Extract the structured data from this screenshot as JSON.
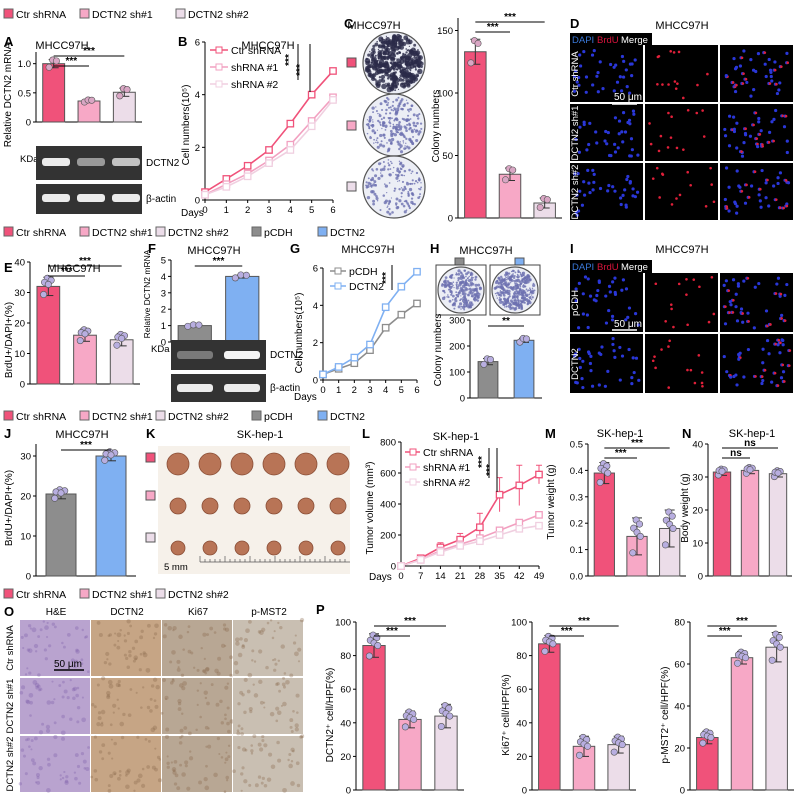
{
  "colors": {
    "ctr": "#f0527a",
    "sh1": "#f7a8c6",
    "sh2": "#ecdde9",
    "pcdh": "#8d8d8d",
    "dctn2": "#7fb0f2",
    "red": "#d8143c",
    "blue": "#3a78d8"
  },
  "legend1": [
    "Ctr shRNA",
    "DCTN2 sh#1",
    "DCTN2 sh#2"
  ],
  "legend2": [
    "Ctr shRNA",
    "DCTN2 sh#1",
    "DCTN2 sh#2",
    "pCDH",
    "DCTN2"
  ],
  "legend3": [
    "Ctr shRNA",
    "DCTN2 sh#1",
    "DCTN2 sh#2",
    "pCDH",
    "DCTN2"
  ],
  "legend4": [
    "Ctr shRNA",
    "DCTN2 sh#1",
    "DCTN2 sh#2"
  ],
  "panels": {
    "A": {
      "letter": "A",
      "title": "MHCC97H",
      "ylabel": "Relative DCTN2 mRNA",
      "kda": "KDa",
      "bands": [
        "DCTN2",
        "β-actin"
      ]
    },
    "B": {
      "letter": "B",
      "title": "MHCC97H",
      "ylabel": "Cell numbers(10⁵)",
      "xlabel": "Days"
    },
    "C": {
      "letter": "C",
      "title": "MHCC97H",
      "ylabel": "Colony numbers"
    },
    "D": {
      "letter": "D",
      "title": "MHCC97H",
      "stains": [
        "DAPI",
        "BrdU",
        "Merge"
      ],
      "rows": [
        "Ctr shRNA",
        "DCTN2 sh#1",
        "DCTN2 sh#2"
      ],
      "scale": "50 μm"
    },
    "E": {
      "letter": "E",
      "title": "MHCC97H",
      "ylabel": "BrdU+/DAPI+(%)"
    },
    "F": {
      "letter": "F",
      "title": "MHCC97H",
      "ylabel": "Relative DCTN2 mRNA",
      "kda": "KDa",
      "bands": [
        "DCTN2",
        "β-actin"
      ]
    },
    "G": {
      "letter": "G",
      "title": "MHCC97H",
      "ylabel": "Cell numbers(10⁵)",
      "xlabel": "Days"
    },
    "H": {
      "letter": "H",
      "title": "MHCC97H",
      "ylabel": "Colony numbers"
    },
    "I": {
      "letter": "I",
      "title": "MHCC97H",
      "stains": [
        "DAPI",
        "BrdU",
        "Merge"
      ],
      "rows": [
        "pCDH",
        "DCTN2"
      ],
      "scale": "50 μm"
    },
    "J": {
      "letter": "J",
      "title": "MHCC97H",
      "ylabel": "BrdU+/DAPI+(%)"
    },
    "K": {
      "letter": "K",
      "title": "SK-hep-1",
      "scale": "5 mm"
    },
    "L": {
      "letter": "L",
      "title": "SK-hep-1",
      "ylabel": "Tumor volume (mm³)",
      "xlabel": "Days"
    },
    "M": {
      "letter": "M",
      "title": "SK-hep-1",
      "ylabel": "Tumor weight (g)"
    },
    "N": {
      "letter": "N",
      "title": "SK-hep-1",
      "ylabel": "Body weight (g)"
    },
    "O": {
      "letter": "O",
      "cols": [
        "H&E",
        "DCTN2",
        "Ki67",
        "p-MST2"
      ],
      "rows": [
        "Ctr shRNA",
        "DCTN2 sh#1",
        "DCTN2 sh#2"
      ],
      "scale": "50 μm"
    },
    "P": {
      "letter": "P",
      "ylabels": [
        "DCTN2⁺ cell/HPF(%)",
        "Ki67⁺ cell/HPF(%)",
        "p-MST2⁺ cell/HPF(%)"
      ]
    }
  },
  "chart_data": [
    {
      "id": "A",
      "type": "bar",
      "categories": [
        "Ctr shRNA",
        "DCTN2 sh#1",
        "DCTN2 sh#2"
      ],
      "values": [
        1.0,
        0.36,
        0.51
      ],
      "errors": [
        0.07,
        0.02,
        0.07
      ],
      "ylim": [
        0,
        1.2
      ],
      "ticks": [
        0,
        0.5,
        1.0
      ],
      "tick_labels": [
        "0",
        "0.5",
        "1.0"
      ],
      "sig": [
        "***",
        "***"
      ]
    },
    {
      "id": "B",
      "type": "line",
      "x": [
        0,
        1,
        2,
        3,
        4,
        5,
        6
      ],
      "series": [
        {
          "name": "Ctr shRNA",
          "values": [
            0.3,
            0.8,
            1.3,
            1.9,
            2.9,
            4.0,
            4.9
          ]
        },
        {
          "name": "shRNA #1",
          "values": [
            0.2,
            0.6,
            1.0,
            1.5,
            2.1,
            3.0,
            3.9
          ]
        },
        {
          "name": "shRNA #2",
          "values": [
            0.2,
            0.5,
            0.9,
            1.4,
            1.9,
            2.8,
            3.8
          ]
        }
      ],
      "ylim": [
        0,
        6
      ],
      "yticks": [
        0,
        2,
        4,
        6
      ],
      "sig": [
        "***",
        "***"
      ]
    },
    {
      "id": "C",
      "type": "bar",
      "categories": [
        "Ctr shRNA",
        "DCTN2 sh#1",
        "DCTN2 sh#2"
      ],
      "values": [
        133,
        35,
        12
      ],
      "errors": [
        10,
        5,
        4
      ],
      "ylim": [
        0,
        160
      ],
      "ticks": [
        0,
        50,
        100,
        150
      ],
      "tick_labels": [
        "0",
        "50",
        "100",
        "150"
      ],
      "sig": [
        "***",
        "***"
      ]
    },
    {
      "id": "E",
      "type": "bar",
      "categories": [
        "Ctr shRNA",
        "DCTN2 sh#1",
        "DCTN2 sh#2"
      ],
      "values": [
        32,
        16,
        14.5
      ],
      "errors": [
        3,
        2,
        2
      ],
      "ylim": [
        0,
        40
      ],
      "ticks": [
        0,
        10,
        20,
        30,
        40
      ],
      "tick_labels": [
        "0",
        "10",
        "20",
        "30",
        "40"
      ],
      "sig": [
        "***",
        "***"
      ]
    },
    {
      "id": "F",
      "type": "bar",
      "categories": [
        "pCDH",
        "DCTN2"
      ],
      "values": [
        1.0,
        4.0
      ],
      "errors": [
        0.05,
        0.1
      ],
      "ylim": [
        0,
        5
      ],
      "ticks": [
        0,
        1,
        2,
        3,
        4,
        5
      ],
      "tick_labels": [
        "0",
        "1",
        "2",
        "3",
        "4",
        "5"
      ],
      "sig": [
        "***"
      ]
    },
    {
      "id": "G",
      "type": "line",
      "x": [
        0,
        1,
        2,
        3,
        4,
        5,
        6
      ],
      "series": [
        {
          "name": "pCDH",
          "values": [
            0.3,
            0.6,
            0.9,
            1.6,
            2.8,
            3.5,
            4.1
          ]
        },
        {
          "name": "DCTN2",
          "values": [
            0.3,
            0.7,
            1.2,
            1.9,
            3.9,
            5.0,
            5.8
          ]
        }
      ],
      "ylim": [
        0,
        6
      ],
      "yticks": [
        0,
        2,
        4,
        6
      ],
      "sig": [
        "***"
      ]
    },
    {
      "id": "H",
      "type": "bar",
      "categories": [
        "pCDH",
        "DCTN2"
      ],
      "values": [
        140,
        222
      ],
      "errors": [
        12,
        8
      ],
      "ylim": [
        0,
        300
      ],
      "ticks": [
        0,
        100,
        200,
        300
      ],
      "tick_labels": [
        "0",
        "100",
        "200",
        "300"
      ],
      "sig": [
        "**"
      ]
    },
    {
      "id": "J",
      "type": "bar",
      "categories": [
        "pCDH",
        "DCTN2"
      ],
      "values": [
        20.5,
        30
      ],
      "errors": [
        1.2,
        1.2
      ],
      "ylim": [
        0,
        33
      ],
      "ticks": [
        0,
        10,
        20,
        30
      ],
      "tick_labels": [
        "0",
        "10",
        "20",
        "30"
      ],
      "sig": [
        "***"
      ]
    },
    {
      "id": "L",
      "type": "line",
      "x": [
        0,
        7,
        14,
        21,
        28,
        35,
        42,
        49
      ],
      "series": [
        {
          "name": "Ctr shRNA",
          "values": [
            0,
            50,
            120,
            170,
            250,
            460,
            520,
            590
          ]
        },
        {
          "name": "shRNA #1",
          "values": [
            0,
            40,
            100,
            140,
            180,
            230,
            280,
            330
          ]
        },
        {
          "name": "shRNA #2",
          "values": [
            0,
            40,
            90,
            130,
            160,
            200,
            240,
            260
          ]
        }
      ],
      "errors": [
        0,
        20,
        30,
        40,
        90,
        110,
        130,
        60
      ],
      "ylim": [
        0,
        800
      ],
      "yticks": [
        0,
        200,
        400,
        600,
        800
      ],
      "sig": [
        "***",
        "***"
      ]
    },
    {
      "id": "M",
      "type": "bar",
      "categories": [
        "Ctr shRNA",
        "DCTN2 sh#1",
        "DCTN2 sh#2"
      ],
      "values": [
        0.39,
        0.15,
        0.18
      ],
      "errors": [
        0.04,
        0.07,
        0.07
      ],
      "ylim": [
        0,
        0.5
      ],
      "ticks": [
        0,
        0.1,
        0.2,
        0.3,
        0.4,
        0.5
      ],
      "tick_labels": [
        "0.0",
        "0.1",
        "0.2",
        "0.3",
        "0.4",
        "0.5"
      ],
      "sig": [
        "***",
        "***"
      ]
    },
    {
      "id": "N",
      "type": "bar",
      "categories": [
        "Ctr shRNA",
        "DCTN2 sh#1",
        "DCTN2 sh#2"
      ],
      "values": [
        31.5,
        32,
        31
      ],
      "errors": [
        1,
        1,
        1
      ],
      "ylim": [
        0,
        40
      ],
      "ticks": [
        0,
        10,
        20,
        30,
        40
      ],
      "tick_labels": [
        "0",
        "10",
        "20",
        "30",
        "40"
      ],
      "sig": [
        "ns",
        "ns"
      ]
    },
    {
      "id": "P1",
      "type": "bar",
      "categories": [
        "Ctr shRNA",
        "DCTN2 sh#1",
        "DCTN2 sh#2"
      ],
      "values": [
        86,
        42,
        44
      ],
      "errors": [
        7,
        5,
        7
      ],
      "ylim": [
        0,
        100
      ],
      "ticks": [
        0,
        20,
        40,
        60,
        80,
        100
      ],
      "tick_labels": [
        "0",
        "20",
        "40",
        "60",
        "80",
        "100"
      ],
      "sig": [
        "***",
        "***"
      ]
    },
    {
      "id": "P2",
      "type": "bar",
      "categories": [
        "Ctr shRNA",
        "DCTN2 sh#1",
        "DCTN2 sh#2"
      ],
      "values": [
        87,
        26,
        27
      ],
      "errors": [
        5,
        6,
        5
      ],
      "ylim": [
        0,
        100
      ],
      "ticks": [
        0,
        20,
        40,
        60,
        80,
        100
      ],
      "tick_labels": [
        "0",
        "20",
        "40",
        "60",
        "80",
        "100"
      ],
      "sig": [
        "***",
        "***"
      ]
    },
    {
      "id": "P3",
      "type": "bar",
      "categories": [
        "Ctr shRNA",
        "DCTN2 sh#1",
        "DCTN2 sh#2"
      ],
      "values": [
        25,
        63,
        68
      ],
      "errors": [
        3,
        3,
        7
      ],
      "ylim": [
        0,
        80
      ],
      "ticks": [
        0,
        20,
        40,
        60,
        80
      ],
      "tick_labels": [
        "0",
        "20",
        "40",
        "60",
        "80"
      ],
      "sig": [
        "***",
        "***"
      ]
    }
  ],
  "axes": {
    "B_x": [
      "0",
      "1",
      "2",
      "3",
      "4",
      "5",
      "6"
    ],
    "L_x": [
      "0",
      "7",
      "14",
      "21",
      "28",
      "35",
      "42",
      "49"
    ],
    "L_y": [
      "0",
      "200",
      "400",
      "600",
      "800"
    ]
  }
}
